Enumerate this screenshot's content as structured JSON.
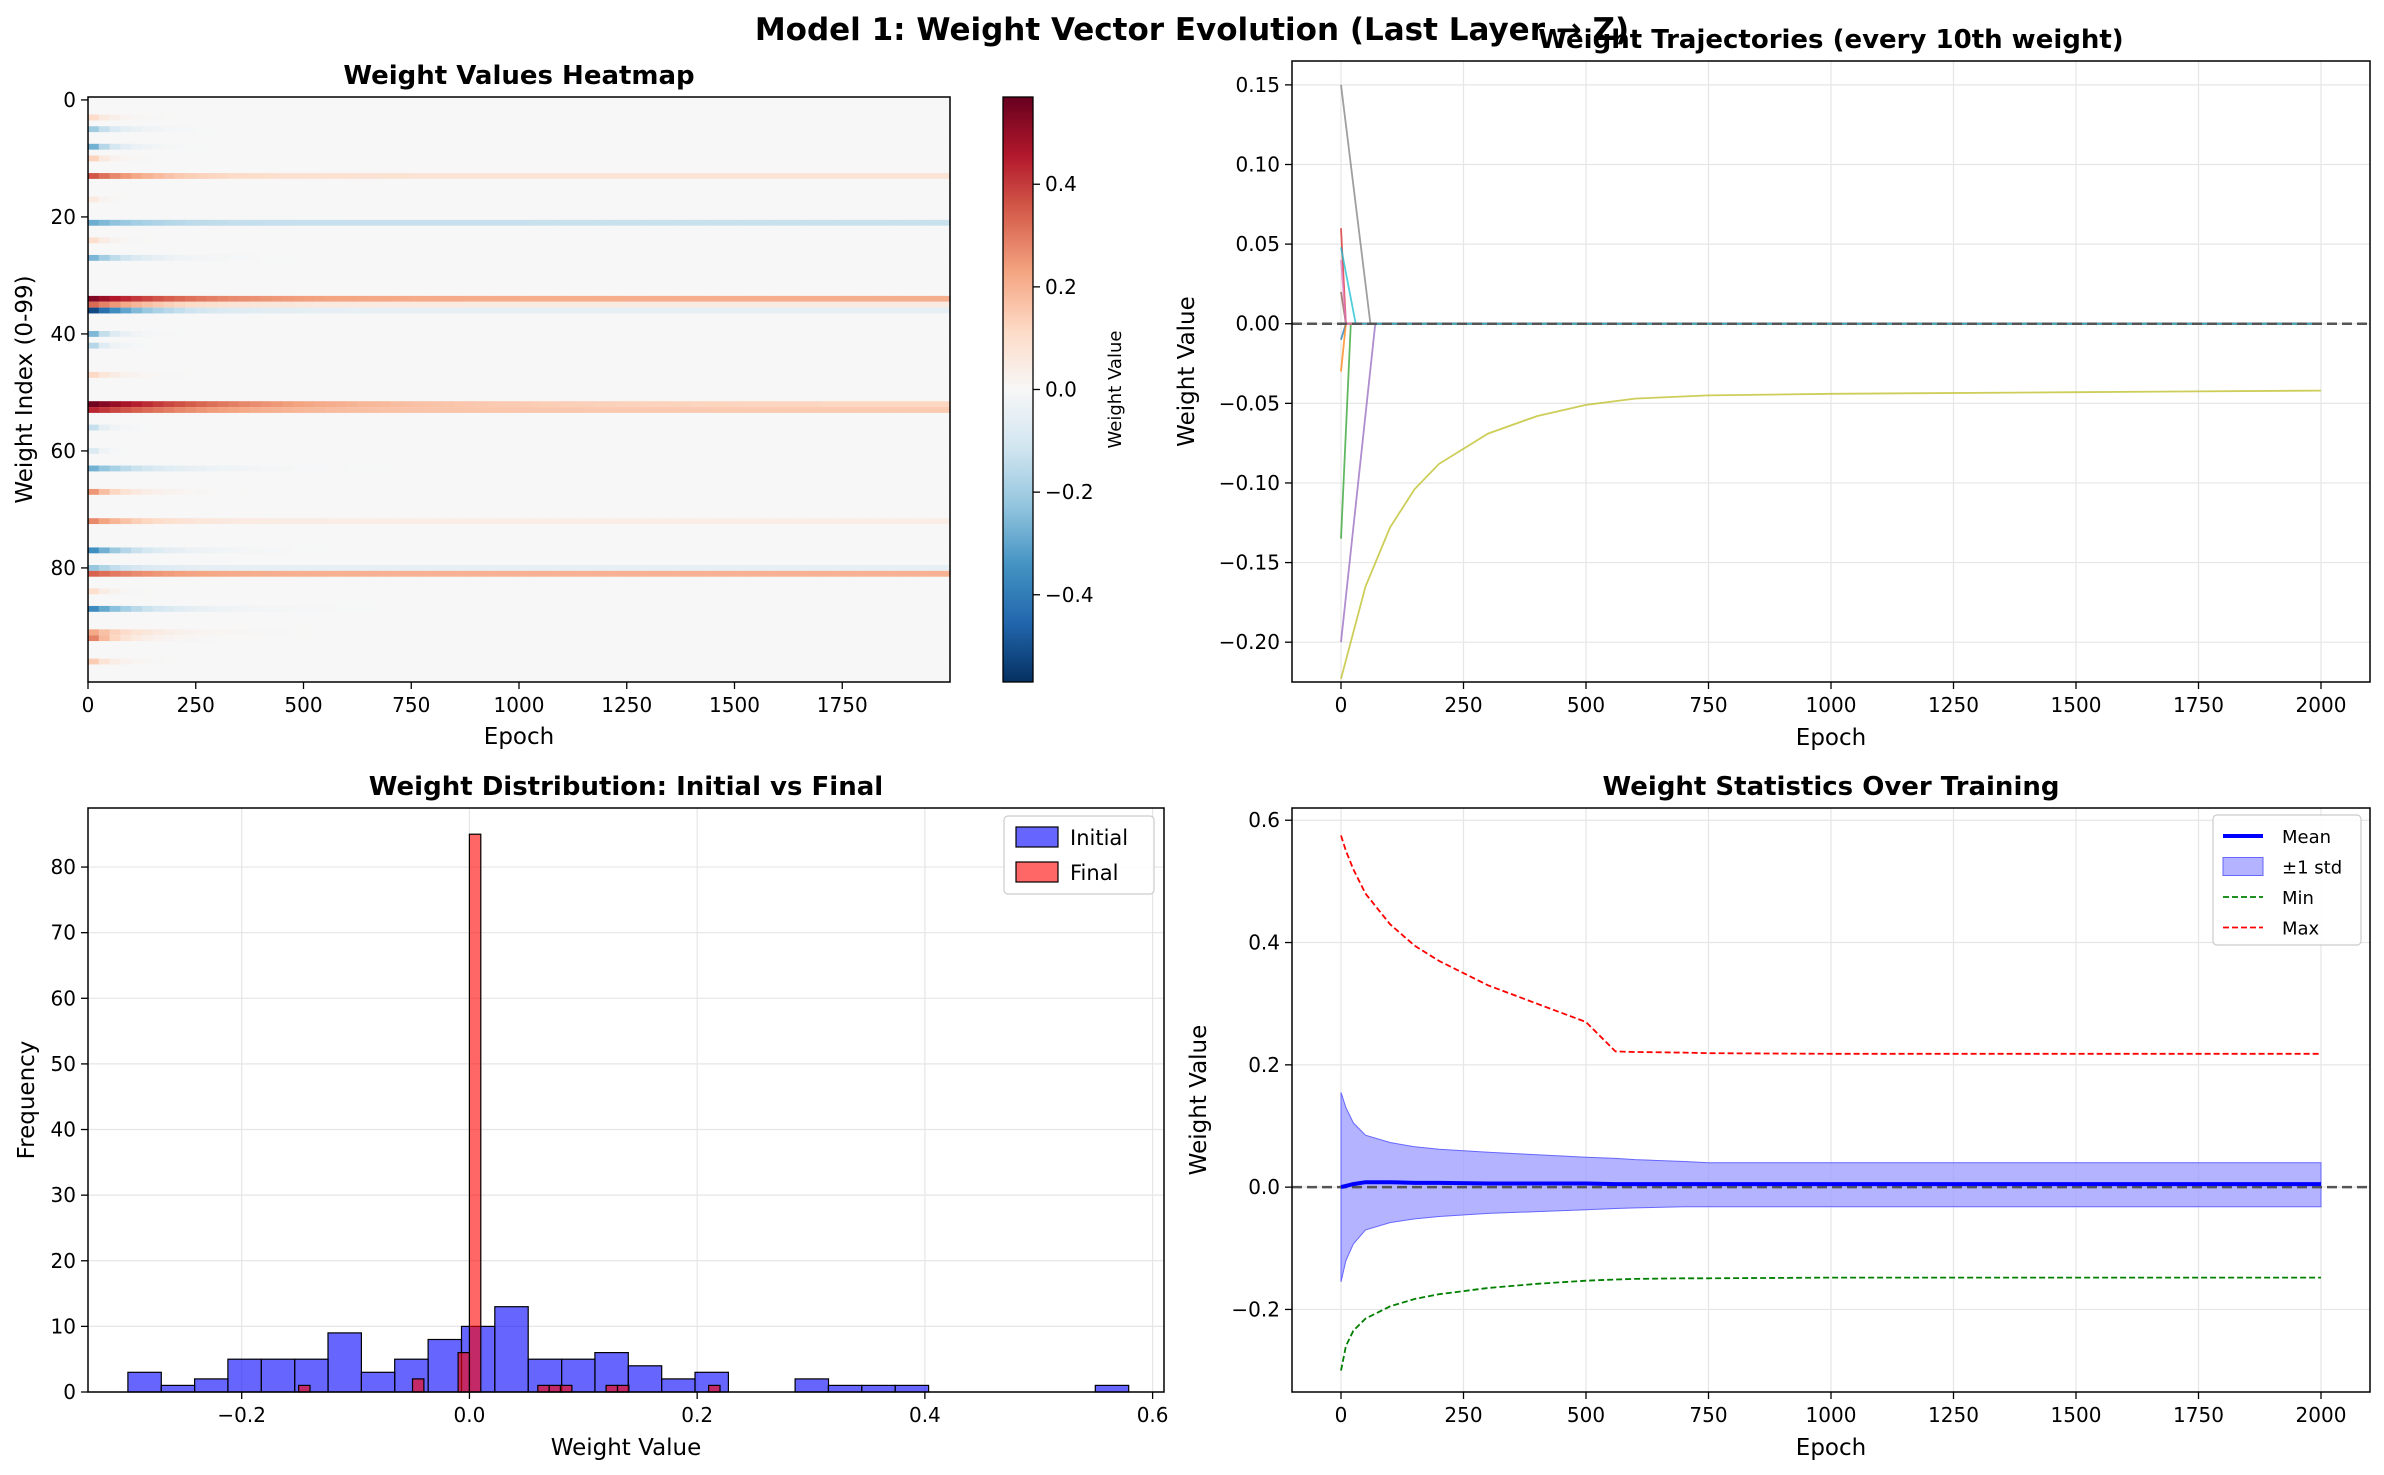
{
  "figure_title": "Model 1: Weight Vector Evolution (Last Layer → Z)",
  "colors": {
    "initial": "#0000ff",
    "final": "#ff0000",
    "mean": "#0000ff",
    "std_band": "#9999ff",
    "min": "#008000",
    "max": "#ff0000",
    "zero_line": "#555555"
  },
  "chart_data": [
    {
      "type": "heatmap",
      "title": "Weight Values Heatmap",
      "xlabel": "Epoch",
      "ylabel": "Weight Index (0-99)",
      "colorbar_label": "Weight Value",
      "colormap": "RdBu_r",
      "xlim": [
        0,
        2000
      ],
      "ylim": [
        100,
        0
      ],
      "zlim": [
        -0.57,
        0.57
      ],
      "xticks": [
        0,
        250,
        500,
        750,
        1000,
        1250,
        1500,
        1750
      ],
      "yticks": [
        0,
        20,
        40,
        60,
        80
      ],
      "colorbar_ticks": [
        0.4,
        0.2,
        0.0,
        -0.2,
        -0.4
      ],
      "colorbar_tick_labels": [
        "0.4",
        "0.2",
        "0.0",
        "−0.2",
        "−0.4"
      ],
      "rows": [
        {
          "index": 3,
          "initial": 0.15,
          "final": 0.0,
          "decay": 40
        },
        {
          "index": 5,
          "initial": -0.25,
          "final": 0.0,
          "decay": 60
        },
        {
          "index": 8,
          "initial": -0.35,
          "final": 0.0,
          "decay": 50
        },
        {
          "index": 10,
          "initial": 0.2,
          "final": 0.0,
          "decay": 30
        },
        {
          "index": 13,
          "initial": 0.38,
          "final": 0.08,
          "decay": 150
        },
        {
          "index": 17,
          "initial": 0.1,
          "final": 0.0,
          "decay": 20
        },
        {
          "index": 21,
          "initial": -0.3,
          "final": -0.13,
          "decay": 120
        },
        {
          "index": 24,
          "initial": 0.15,
          "final": 0.0,
          "decay": 30
        },
        {
          "index": 27,
          "initial": -0.3,
          "final": 0.0,
          "decay": 90
        },
        {
          "index": 34,
          "initial": 0.55,
          "final": 0.21,
          "decay": 200
        },
        {
          "index": 35,
          "initial": 0.35,
          "final": 0.05,
          "decay": 150
        },
        {
          "index": 36,
          "initial": -0.57,
          "final": -0.05,
          "decay": 120
        },
        {
          "index": 40,
          "initial": -0.35,
          "final": 0.0,
          "decay": 40
        },
        {
          "index": 42,
          "initial": -0.25,
          "final": 0.0,
          "decay": 30
        },
        {
          "index": 47,
          "initial": 0.15,
          "final": 0.0,
          "decay": 50
        },
        {
          "index": 52,
          "initial": 0.57,
          "final": 0.12,
          "decay": 350
        },
        {
          "index": 53,
          "initial": 0.45,
          "final": 0.15,
          "decay": 250
        },
        {
          "index": 56,
          "initial": -0.2,
          "final": 0.0,
          "decay": 30
        },
        {
          "index": 60,
          "initial": -0.15,
          "final": 0.0,
          "decay": 20
        },
        {
          "index": 63,
          "initial": -0.3,
          "final": 0.0,
          "decay": 130
        },
        {
          "index": 67,
          "initial": 0.3,
          "final": 0.0,
          "decay": 70
        },
        {
          "index": 72,
          "initial": 0.3,
          "final": 0.04,
          "decay": 120
        },
        {
          "index": 77,
          "initial": -0.4,
          "final": 0.0,
          "decay": 100
        },
        {
          "index": 80,
          "initial": -0.25,
          "final": -0.05,
          "decay": 80
        },
        {
          "index": 81,
          "initial": 0.35,
          "final": 0.2,
          "decay": 150
        },
        {
          "index": 84,
          "initial": 0.15,
          "final": 0.0,
          "decay": 30
        },
        {
          "index": 87,
          "initial": -0.4,
          "final": 0.0,
          "decay": 120
        },
        {
          "index": 91,
          "initial": 0.25,
          "final": 0.0,
          "decay": 100
        },
        {
          "index": 92,
          "initial": 0.35,
          "final": 0.0,
          "decay": 60
        },
        {
          "index": 96,
          "initial": 0.2,
          "final": 0.0,
          "decay": 40
        }
      ]
    },
    {
      "type": "line",
      "title": "Weight Trajectories (every 10th weight)",
      "xlabel": "Epoch",
      "ylabel": "Weight Value",
      "xlim": [
        -100,
        2100
      ],
      "ylim": [
        -0.225,
        0.165
      ],
      "xticks": [
        0,
        250,
        500,
        750,
        1000,
        1250,
        1500,
        1750,
        2000
      ],
      "yticks": [
        0.15,
        0.1,
        0.05,
        0.0,
        -0.05,
        -0.1,
        -0.15,
        -0.2
      ],
      "ytick_labels": [
        "0.15",
        "0.10",
        "0.05",
        "0.00",
        "−0.05",
        "−0.10",
        "−0.15",
        "−0.20"
      ],
      "grid": true,
      "hline": 0.0,
      "series": [
        {
          "color": "#1f77b4",
          "x": [
            0,
            10,
            20,
            2000
          ],
          "y": [
            -0.01,
            0.0,
            0.0,
            0.0
          ]
        },
        {
          "color": "#ff7f0e",
          "x": [
            0,
            10,
            20,
            2000
          ],
          "y": [
            -0.03,
            0.0,
            0.0,
            0.0
          ]
        },
        {
          "color": "#2ca02c",
          "x": [
            0,
            20,
            40,
            2000
          ],
          "y": [
            -0.135,
            0.0,
            0.0,
            0.0
          ]
        },
        {
          "color": "#d62728",
          "x": [
            0,
            10,
            20,
            2000
          ],
          "y": [
            0.06,
            0.0,
            0.0,
            0.0
          ]
        },
        {
          "color": "#9467bd",
          "x": [
            0,
            70,
            80,
            2000
          ],
          "y": [
            -0.2,
            0.0,
            0.0,
            0.0
          ]
        },
        {
          "color": "#8c564b",
          "x": [
            0,
            10,
            20,
            2000
          ],
          "y": [
            0.02,
            0.0,
            0.0,
            0.0
          ]
        },
        {
          "color": "#e377c2",
          "x": [
            0,
            10,
            20,
            2000
          ],
          "y": [
            0.04,
            0.0,
            0.0,
            0.0
          ]
        },
        {
          "color": "#7f7f7f",
          "x": [
            0,
            60,
            70,
            2000
          ],
          "y": [
            0.15,
            0.0,
            0.0,
            0.0
          ]
        },
        {
          "color": "#bcbd22",
          "x": [
            0,
            50,
            100,
            150,
            200,
            300,
            400,
            500,
            600,
            750,
            1000,
            1500,
            2000
          ],
          "y": [
            -0.223,
            -0.165,
            -0.128,
            -0.104,
            -0.088,
            -0.069,
            -0.058,
            -0.051,
            -0.047,
            -0.045,
            -0.044,
            -0.043,
            -0.042
          ]
        },
        {
          "color": "#17becf",
          "x": [
            0,
            30,
            40,
            2000
          ],
          "y": [
            0.048,
            0.0,
            0.0,
            0.0
          ]
        }
      ]
    },
    {
      "type": "histogram",
      "title": "Weight Distribution: Initial vs Final",
      "xlabel": "Weight Value",
      "ylabel": "Frequency",
      "xlim": [
        -0.335,
        0.61
      ],
      "ylim": [
        0,
        89
      ],
      "xticks": [
        -0.2,
        0.0,
        0.2,
        0.4,
        0.6
      ],
      "xtick_labels": [
        "−0.2",
        "0.0",
        "0.2",
        "0.4",
        "0.6"
      ],
      "yticks": [
        0,
        10,
        20,
        30,
        40,
        50,
        60,
        70,
        80
      ],
      "legend": [
        "Initial",
        "Final"
      ],
      "legend_position": "top-right",
      "series": [
        {
          "name": "Initial",
          "bin_width": 0.0293,
          "bins_start": [
            -0.3,
            -0.2707,
            -0.2414,
            -0.2121,
            -0.1828,
            -0.1535,
            -0.1242,
            -0.0949,
            -0.0656,
            -0.0363,
            -0.007,
            0.0223,
            0.0516,
            0.0809,
            0.1102,
            0.1395,
            0.1688,
            0.1981,
            0.2274,
            0.2567,
            0.286,
            0.3153,
            0.3446,
            0.3739,
            0.4032,
            0.4325,
            0.4618,
            0.4911,
            0.5204,
            0.5497
          ],
          "counts": [
            3,
            1,
            2,
            5,
            5,
            5,
            9,
            3,
            5,
            8,
            10,
            13,
            5,
            5,
            6,
            4,
            2,
            3,
            0,
            0,
            2,
            1,
            1,
            1,
            0,
            0,
            0,
            0,
            0,
            1
          ]
        },
        {
          "name": "Final",
          "bin_width": 0.01,
          "bins_start": [
            -0.15,
            -0.05,
            -0.01,
            0.0,
            0.06,
            0.07,
            0.08,
            0.12,
            0.13,
            0.21
          ],
          "counts": [
            1,
            2,
            6,
            85,
            1,
            1,
            1,
            1,
            1,
            1
          ]
        }
      ]
    },
    {
      "type": "line",
      "title": "Weight Statistics Over Training",
      "xlabel": "Epoch",
      "ylabel": "Weight Value",
      "xlim": [
        -100,
        2100
      ],
      "ylim": [
        -0.335,
        0.62
      ],
      "xticks": [
        0,
        250,
        500,
        750,
        1000,
        1250,
        1500,
        1750,
        2000
      ],
      "yticks": [
        0.6,
        0.4,
        0.2,
        0.0,
        -0.2
      ],
      "ytick_labels": [
        "0.6",
        "0.4",
        "0.2",
        "0.0",
        "−0.2"
      ],
      "grid": true,
      "hline": 0.0,
      "legend": [
        "Mean",
        "±1 std",
        "Min",
        "Max"
      ],
      "legend_position": "top-right",
      "x": [
        0,
        10,
        25,
        50,
        100,
        150,
        200,
        300,
        400,
        500,
        560,
        600,
        700,
        750,
        1000,
        1500,
        2000
      ],
      "series": [
        {
          "name": "Mean",
          "values": [
            0.0,
            0.002,
            0.005,
            0.008,
            0.008,
            0.007,
            0.007,
            0.006,
            0.006,
            0.006,
            0.005,
            0.005,
            0.005,
            0.005,
            0.005,
            0.005,
            0.005
          ]
        },
        {
          "name": "Upper",
          "values": [
            0.155,
            0.13,
            0.105,
            0.085,
            0.073,
            0.066,
            0.062,
            0.057,
            0.053,
            0.049,
            0.047,
            0.045,
            0.042,
            0.04,
            0.04,
            0.04,
            0.04
          ]
        },
        {
          "name": "Lower",
          "values": [
            -0.155,
            -0.12,
            -0.093,
            -0.07,
            -0.058,
            -0.052,
            -0.048,
            -0.043,
            -0.04,
            -0.037,
            -0.035,
            -0.034,
            -0.032,
            -0.032,
            -0.032,
            -0.032,
            -0.032
          ]
        },
        {
          "name": "Min",
          "values": [
            -0.3,
            -0.26,
            -0.235,
            -0.215,
            -0.195,
            -0.183,
            -0.175,
            -0.165,
            -0.158,
            -0.153,
            -0.151,
            -0.15,
            -0.149,
            -0.149,
            -0.148,
            -0.148,
            -0.148
          ]
        },
        {
          "name": "Max",
          "values": [
            0.575,
            0.55,
            0.52,
            0.48,
            0.43,
            0.395,
            0.37,
            0.33,
            0.3,
            0.27,
            0.222,
            0.221,
            0.22,
            0.219,
            0.218,
            0.218,
            0.218
          ]
        }
      ]
    }
  ]
}
